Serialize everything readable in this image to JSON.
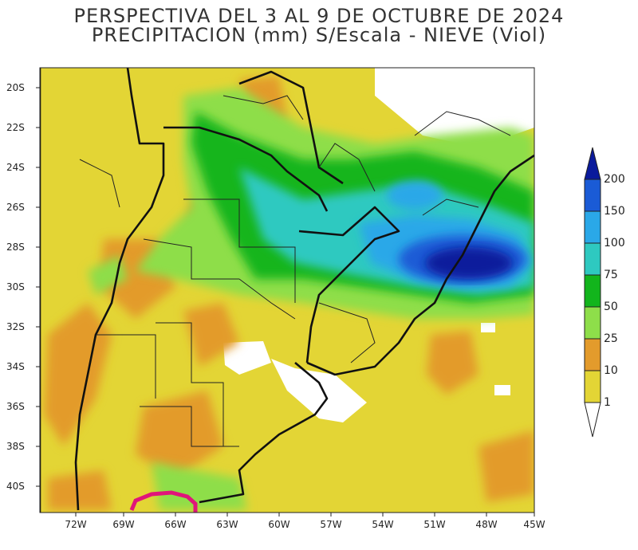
{
  "title": {
    "line1": "PERSPECTIVA DEL 3 AL 9 DE OCTUBRE DE 2024",
    "line2": "PRECIPITACION (mm) S/Escala - NIEVE (Viol)"
  },
  "map": {
    "lat_labels": [
      "20S",
      "22S",
      "24S",
      "26S",
      "28S",
      "30S",
      "32S",
      "34S",
      "36S",
      "38S",
      "40S"
    ],
    "lon_labels": [
      "72W",
      "69W",
      "66W",
      "63W",
      "60W",
      "57W",
      "54W",
      "51W",
      "48W",
      "45W"
    ]
  },
  "colorbar": {
    "levels": [
      "200",
      "150",
      "100",
      "75",
      "50",
      "25",
      "10",
      "1"
    ],
    "colors": [
      "#0a1a9c",
      "#1a5bd6",
      "#2aa8e8",
      "#2ec9c0",
      "#12b51c",
      "#8ede4a",
      "#e39b2c",
      "#e3d535"
    ],
    "bottom_color": "#ffffff"
  },
  "snow_color": "#e0157a"
}
